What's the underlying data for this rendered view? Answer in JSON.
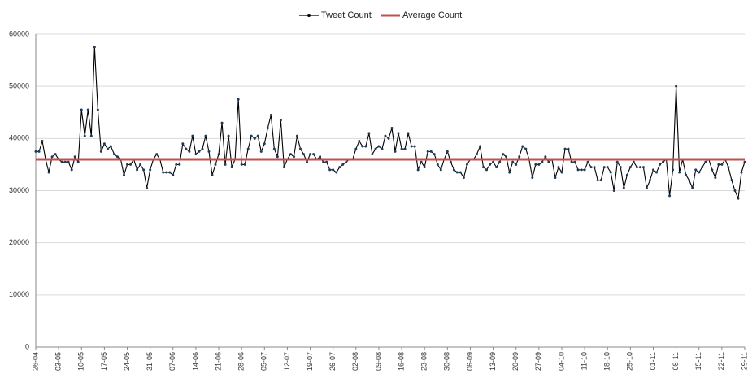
{
  "chart_data": {
    "type": "line",
    "categories": [
      "26-04",
      null,
      null,
      null,
      null,
      null,
      null,
      "03-05",
      null,
      null,
      null,
      null,
      null,
      null,
      "10-05",
      null,
      null,
      null,
      null,
      null,
      null,
      "17-05",
      null,
      null,
      null,
      null,
      null,
      null,
      "24-05",
      null,
      null,
      null,
      null,
      null,
      null,
      "31-05",
      null,
      null,
      null,
      null,
      null,
      null,
      "07-06",
      null,
      null,
      null,
      null,
      null,
      null,
      "14-06",
      null,
      null,
      null,
      null,
      null,
      null,
      "21-06",
      null,
      null,
      null,
      null,
      null,
      null,
      "28-06",
      null,
      null,
      null,
      null,
      null,
      null,
      "05-07",
      null,
      null,
      null,
      null,
      null,
      null,
      "12-07",
      null,
      null,
      null,
      null,
      null,
      null,
      "19-07",
      null,
      null,
      null,
      null,
      null,
      null,
      "26-07",
      null,
      null,
      null,
      null,
      null,
      null,
      "02-08",
      null,
      null,
      null,
      null,
      null,
      null,
      "09-08",
      null,
      null,
      null,
      null,
      null,
      null,
      "16-08",
      null,
      null,
      null,
      null,
      null,
      null,
      "23-08",
      null,
      null,
      null,
      null,
      null,
      null,
      "30-08",
      null,
      null,
      null,
      null,
      null,
      null,
      "06-09",
      null,
      null,
      null,
      null,
      null,
      null,
      "13-09",
      null,
      null,
      null,
      null,
      null,
      null,
      "20-09",
      null,
      null,
      null,
      null,
      null,
      null,
      "27-09",
      null,
      null,
      null,
      null,
      null,
      null,
      "04-10",
      null,
      null,
      null,
      null,
      null,
      null,
      "11-10",
      null,
      null,
      null,
      null,
      null,
      null,
      "18-10",
      null,
      null,
      null,
      null,
      null,
      null,
      "25-10",
      null,
      null,
      null,
      null,
      null,
      null,
      "01-11",
      null,
      null,
      null,
      null,
      null,
      null,
      "08-11",
      null,
      null,
      null,
      null,
      null,
      null,
      "15-11",
      null,
      null,
      null,
      null,
      null,
      null,
      "22-11",
      null,
      null,
      null,
      null,
      null,
      null,
      "29-11"
    ],
    "series": [
      {
        "name": "Tweet Count",
        "color": "#000000",
        "values": [
          37500,
          37500,
          39500,
          36000,
          33500,
          36500,
          37000,
          36000,
          35500,
          35500,
          35500,
          34000,
          36500,
          35500,
          45500,
          40500,
          45500,
          40500,
          57500,
          45500,
          37500,
          39000,
          38000,
          38500,
          37000,
          36500,
          36000,
          33000,
          35000,
          35000,
          36000,
          34000,
          35000,
          34000,
          30500,
          34000,
          36000,
          37000,
          36000,
          33500,
          33500,
          33500,
          33000,
          35000,
          35000,
          39000,
          38000,
          37500,
          40500,
          37000,
          37500,
          38000,
          40500,
          37500,
          33000,
          35000,
          37000,
          43000,
          35000,
          40500,
          34500,
          36000,
          47500,
          35000,
          35000,
          38000,
          40500,
          40000,
          40500,
          37500,
          39000,
          42000,
          44500,
          38000,
          36500,
          43500,
          34500,
          36000,
          37000,
          36500,
          40500,
          38000,
          37000,
          35500,
          37000,
          37000,
          36000,
          36500,
          35500,
          35500,
          34000,
          34000,
          33500,
          34500,
          35000,
          35500,
          36000,
          36000,
          38000,
          39500,
          38500,
          38500,
          41000,
          37000,
          38000,
          38500,
          38000,
          40500,
          40000,
          42000,
          37500,
          41000,
          38000,
          38000,
          41000,
          38500,
          38500,
          34000,
          35500,
          34500,
          37500,
          37500,
          37000,
          35000,
          34000,
          36000,
          37500,
          35500,
          34000,
          33500,
          33500,
          32500,
          35000,
          36000,
          36000,
          37000,
          38500,
          34500,
          34000,
          35000,
          35500,
          34500,
          35500,
          37000,
          36500,
          33500,
          35500,
          35000,
          36500,
          38500,
          38000,
          36000,
          32500,
          35000,
          35000,
          35500,
          36500,
          35500,
          36000,
          32500,
          34500,
          33500,
          38000,
          38000,
          35500,
          35500,
          34000,
          34000,
          34000,
          35500,
          34500,
          34500,
          32000,
          32000,
          34500,
          34500,
          33500,
          30000,
          35500,
          34500,
          30500,
          33000,
          34500,
          35500,
          34500,
          34500,
          34500,
          30500,
          32000,
          34000,
          33500,
          35000,
          35500,
          36000,
          29000,
          34000,
          50000,
          33500,
          36000,
          33000,
          32000,
          30500,
          34000,
          33500,
          34500,
          35500,
          36000,
          34000,
          32500,
          35000,
          35000,
          36000,
          34500,
          32000,
          30000,
          28500,
          33500,
          35500
        ]
      },
      {
        "name": "Average Count",
        "color": "#c0504d",
        "value": 36000
      }
    ],
    "ylim": [
      0,
      60000
    ],
    "yticks": [
      0,
      10000,
      20000,
      30000,
      40000,
      50000,
      60000
    ],
    "grid": true,
    "legend": "top"
  }
}
